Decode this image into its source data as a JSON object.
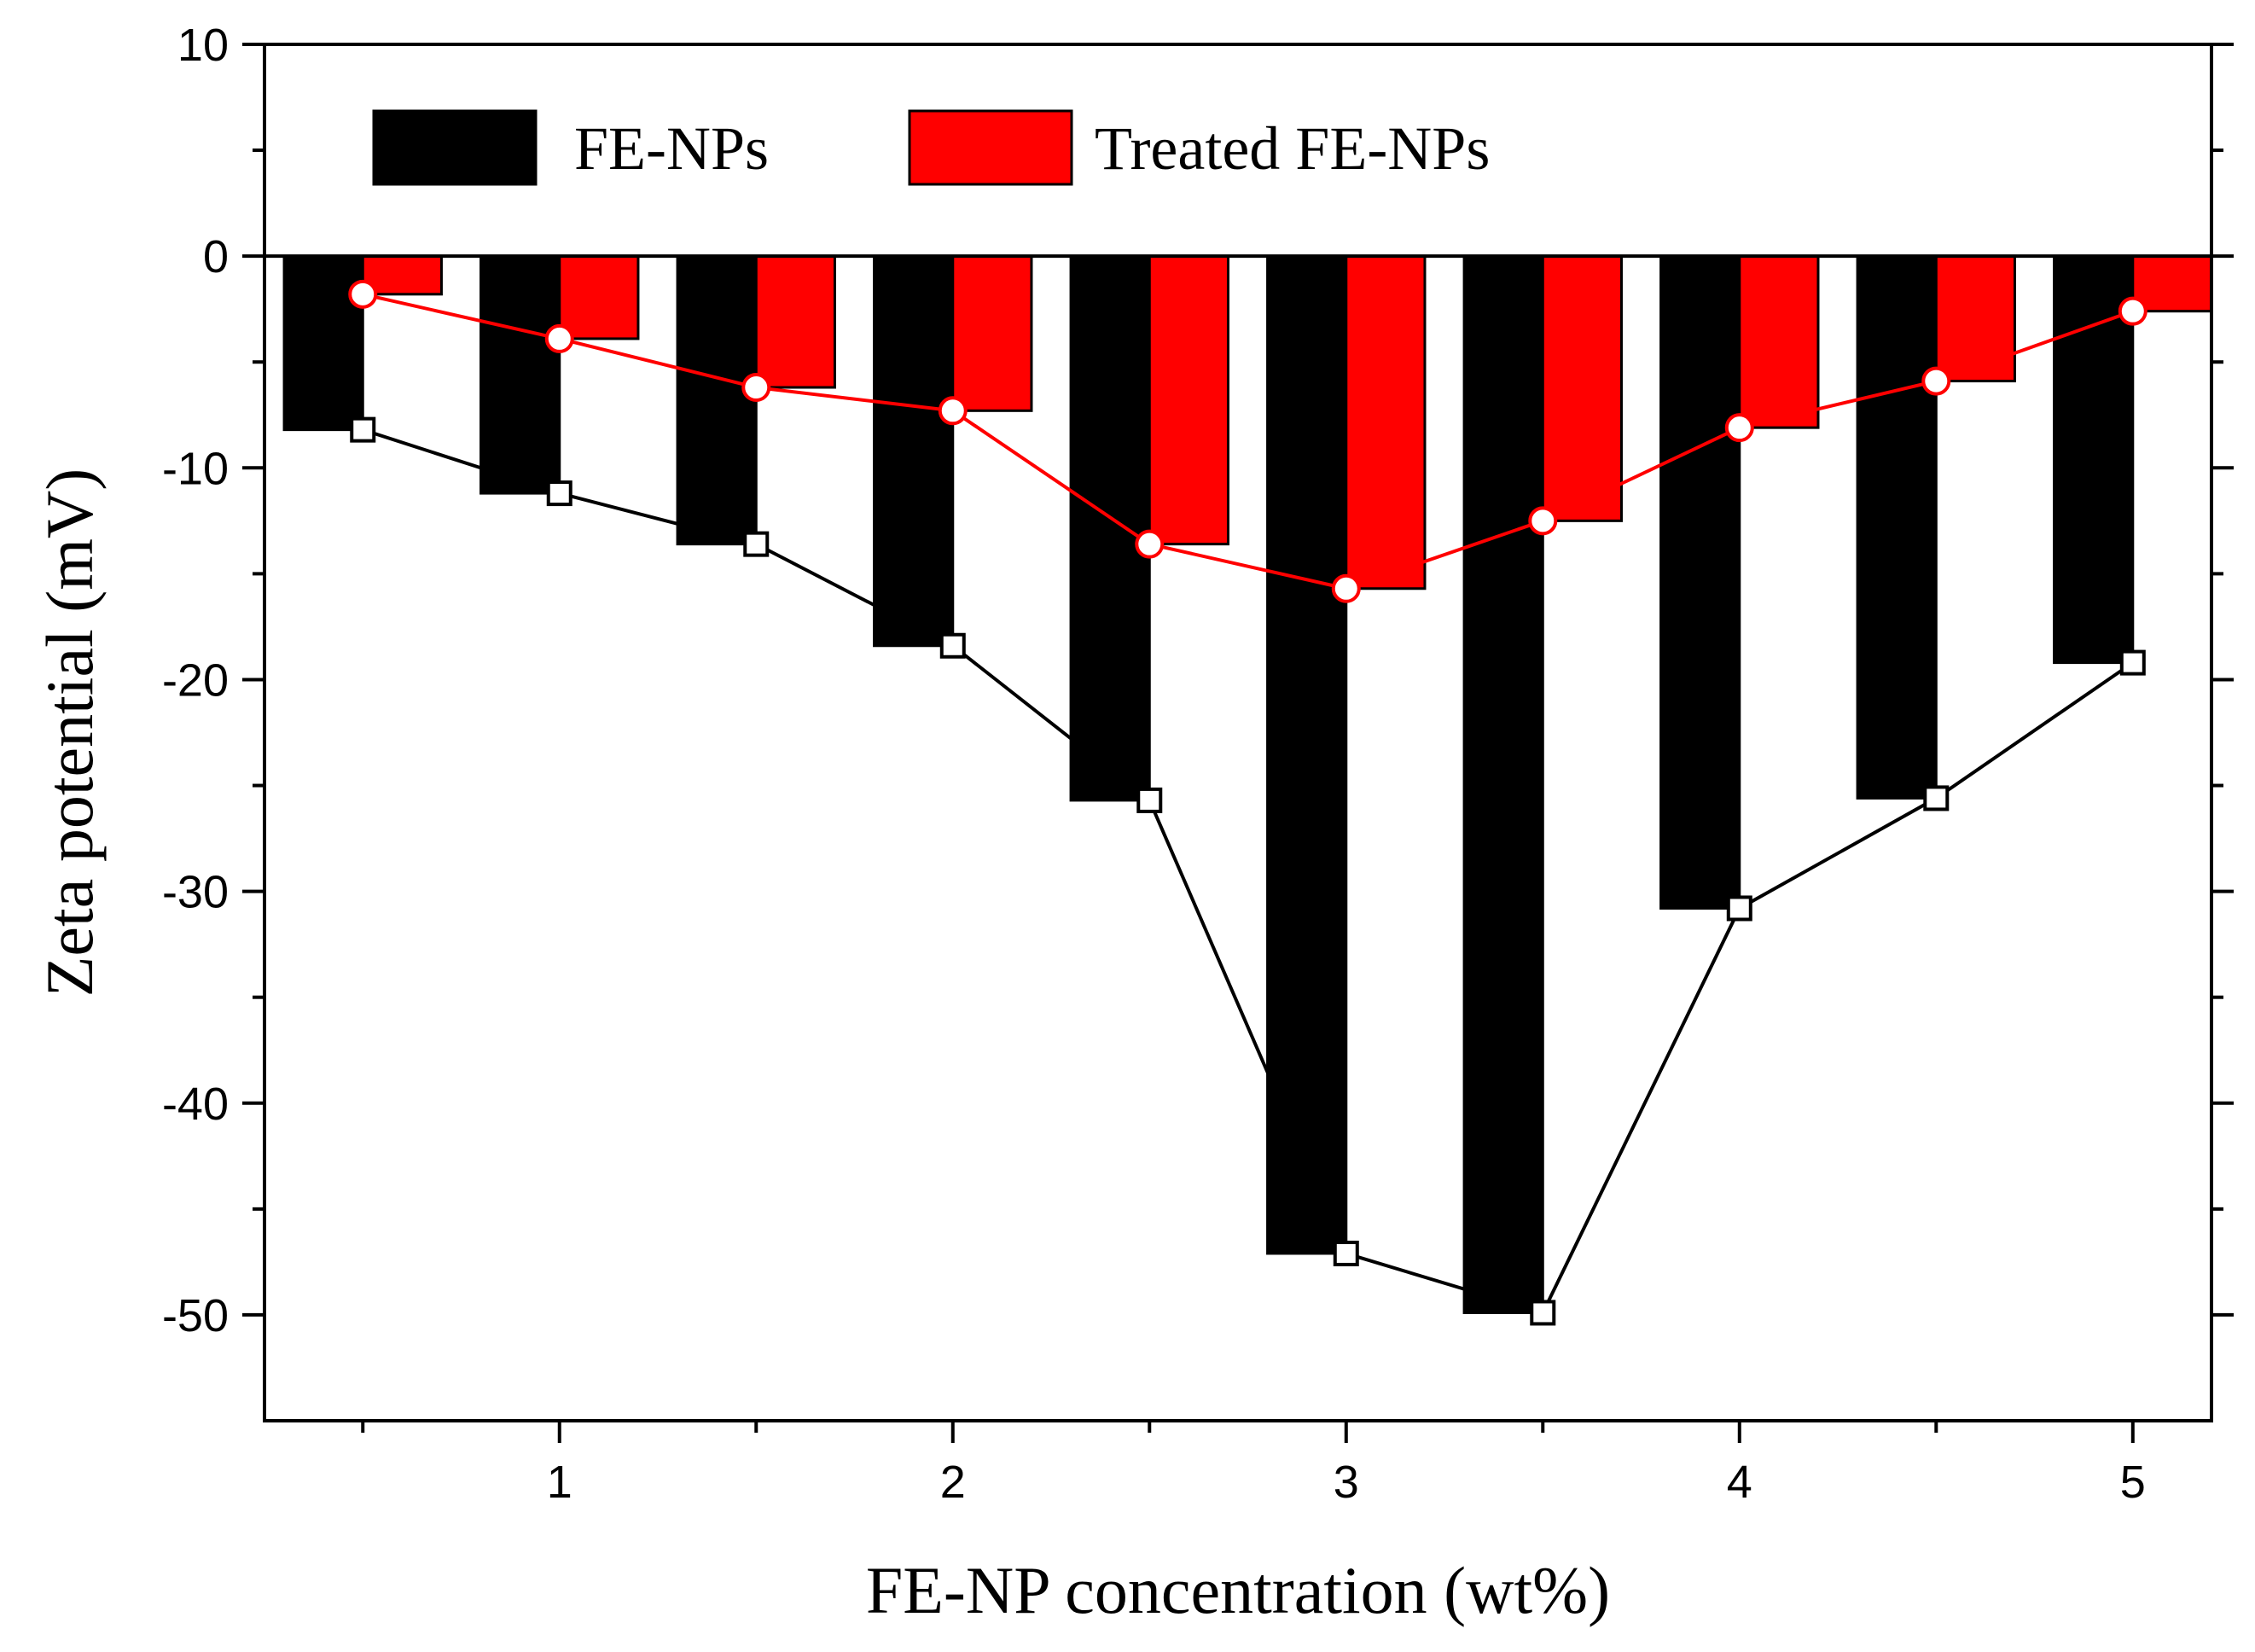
{
  "chart_data": {
    "type": "bar",
    "title": "",
    "xlabel": "FE-NP concentration (wt%)",
    "ylabel": "Zeta potential (mV)",
    "xlim": [
      0.25,
      5.2
    ],
    "ylim": [
      -55,
      10
    ],
    "xticks": [
      1,
      2,
      3,
      4,
      5
    ],
    "xtick_labels": [
      "1",
      "2",
      "3",
      "4",
      "5"
    ],
    "minor_xticks": [
      0.5,
      1.5,
      2.5,
      3.5,
      4.5
    ],
    "yticks": [
      10,
      0,
      -10,
      -20,
      -30,
      -40,
      -50
    ],
    "ytick_labels": [
      "10",
      "0",
      "-10",
      "-20",
      "-30",
      "-40",
      "-50"
    ],
    "minor_yticks": [
      5,
      -5,
      -15,
      -25,
      -35,
      -45
    ],
    "legend_position": "top-left, inside",
    "x": [
      0.5,
      1.0,
      1.5,
      2.0,
      2.5,
      3.0,
      3.5,
      4.0,
      4.5,
      5.0
    ],
    "series": [
      {
        "name": "FE-NPs",
        "color": "#000000",
        "bar_side": "left",
        "marker": "square",
        "line_color": "#000000",
        "values": [
          -8.2,
          -11.2,
          -13.6,
          -18.4,
          -25.7,
          -47.1,
          -49.9,
          -30.8,
          -25.6,
          -19.2
        ]
      },
      {
        "name": "Treated FE-NPs",
        "color": "#ff0000",
        "bar_side": "right",
        "marker": "circle",
        "line_color": "#ff0000",
        "values": [
          -1.8,
          -3.9,
          -6.2,
          -7.3,
          -13.6,
          -15.7,
          -12.5,
          -8.1,
          -5.9,
          -2.6
        ]
      }
    ]
  }
}
